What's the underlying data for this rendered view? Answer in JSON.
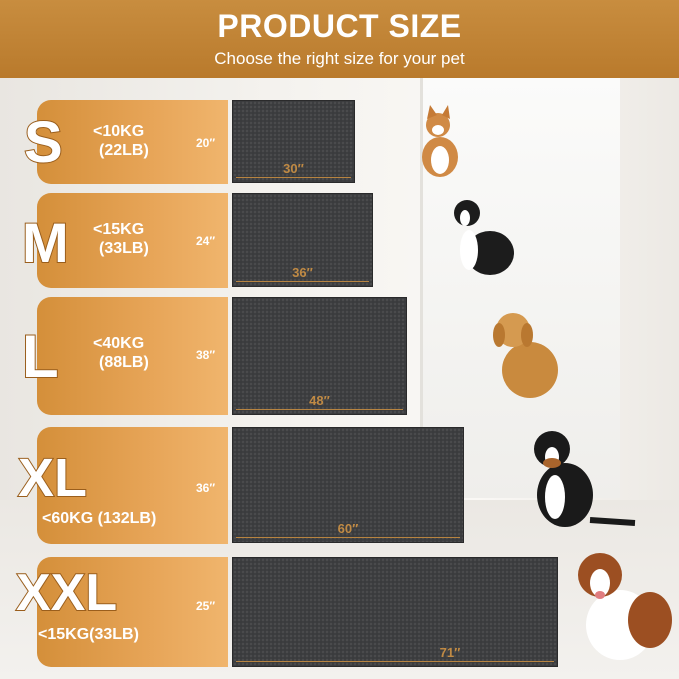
{
  "header": {
    "title": "PRODUCT SIZE",
    "subtitle": "Choose the right size for your pet"
  },
  "sizes": [
    {
      "size": "S",
      "weight_kg": "<10KG",
      "weight_lb": "(22LB)",
      "height": "20″",
      "width": "30″"
    },
    {
      "size": "M",
      "weight_kg": "<15KG",
      "weight_lb": "(33LB)",
      "height": "24″",
      "width": "36″"
    },
    {
      "size": "L",
      "weight_kg": "<40KG",
      "weight_lb": "(88LB)",
      "height": "38″",
      "width": "48″"
    },
    {
      "size": "XL",
      "weight": "<60KG (132LB)",
      "height": "36″",
      "width": "60″"
    },
    {
      "size": "XXL",
      "weight": "<15KG(33LB)",
      "height": "25″",
      "width": "71″"
    }
  ],
  "colors": {
    "accent": "#c88d3f",
    "mat": "#3a3b3d",
    "text_stroke": "#9a5e1c"
  }
}
